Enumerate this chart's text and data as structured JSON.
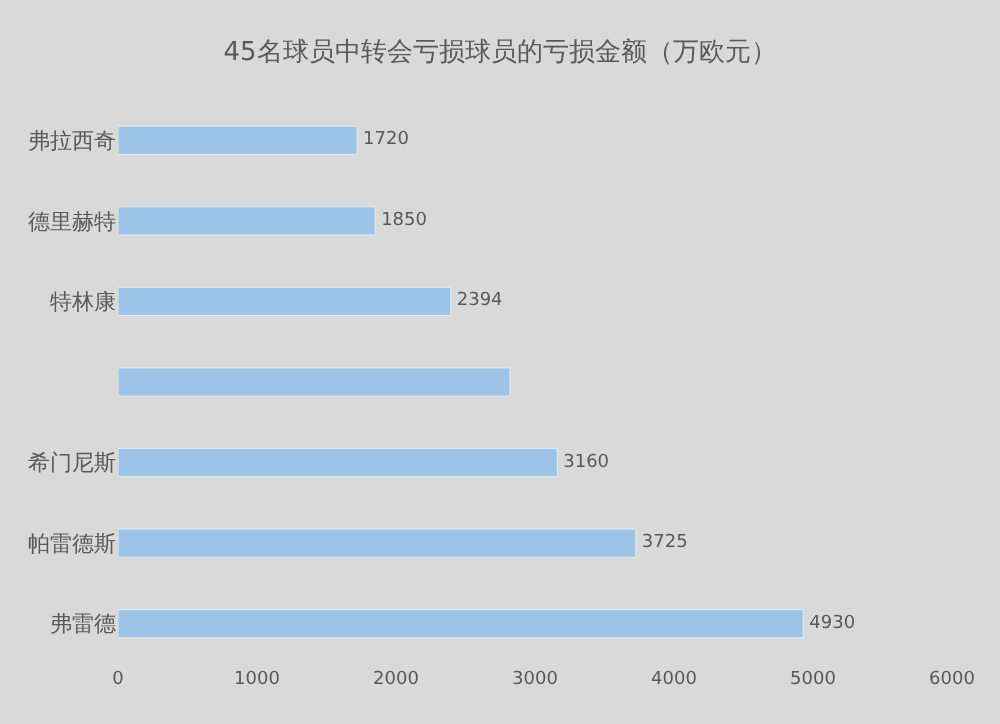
{
  "chart_data": {
    "type": "bar",
    "orientation": "horizontal",
    "title": "45名球员中转会亏损球员的亏损金额（万欧元）",
    "categories": [
      "弗拉西奇",
      "德里赫特",
      "特林康",
      null,
      "希门尼斯",
      "帕雷德斯",
      "弗雷德"
    ],
    "values": [
      1720,
      1850,
      2394,
      2820,
      3160,
      3725,
      4930
    ],
    "value_labels": [
      "1720",
      "1850",
      "2394",
      null,
      "3160",
      "3725",
      "4930"
    ],
    "color": "#9dc3e6",
    "xlim": [
      0,
      6000
    ],
    "xticks": [
      0,
      1000,
      2000,
      3000,
      4000,
      5000,
      6000
    ],
    "grid": false,
    "legend": false
  }
}
